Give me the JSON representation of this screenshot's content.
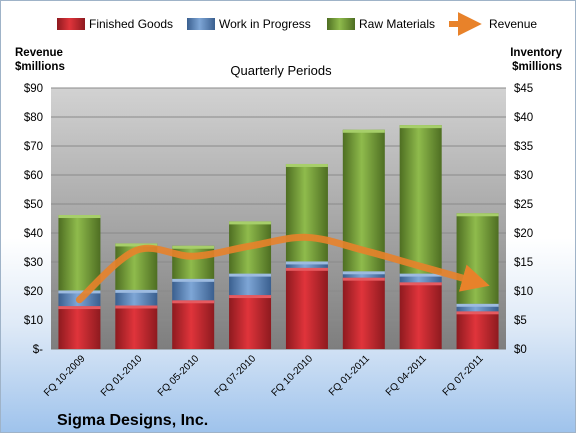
{
  "chart_data": {
    "type": "bar",
    "title": "Quarterly Periods",
    "company": "Sigma Designs, Inc.",
    "categories": [
      "FQ 10-2009",
      "FQ 01-2010",
      "FQ 05-2010",
      "FQ 07-2010",
      "FQ 10-2010",
      "FQ 01-2011",
      "FQ 04-2011",
      "FQ 07-2011"
    ],
    "stacked": true,
    "series": [
      {
        "name": "Finished Goods",
        "axis": "right",
        "color": "#c0272d",
        "values": [
          7.4,
          7.5,
          8.4,
          9.3,
          14.0,
          12.3,
          11.5,
          6.5
        ]
      },
      {
        "name": "Work in Progress",
        "axis": "right",
        "color": "#4f81bd",
        "values": [
          2.7,
          2.7,
          3.7,
          3.7,
          1.1,
          1.1,
          1.5,
          1.3
        ]
      },
      {
        "name": "Raw Materials",
        "axis": "right",
        "color": "#77a03a",
        "values": [
          13.0,
          8.0,
          5.7,
          9.0,
          16.8,
          24.4,
          25.6,
          15.6
        ]
      }
    ],
    "line_series": {
      "name": "Revenue",
      "axis": "left",
      "color": "#e8822a",
      "values": [
        17,
        34,
        32,
        35.5,
        38.5,
        34,
        28.5,
        23
      ]
    },
    "left_axis": {
      "label_line1": "Revenue",
      "label_line2": "$millions",
      "ylim": [
        0,
        90
      ],
      "ticks": [
        "$-",
        "$10",
        "$20",
        "$30",
        "$40",
        "$50",
        "$60",
        "$70",
        "$80",
        "$90"
      ]
    },
    "right_axis": {
      "label_line1": "Inventory",
      "label_line2": "$millions",
      "ylim": [
        0,
        45
      ],
      "ticks": [
        "$0",
        "$5",
        "$10",
        "$15",
        "$20",
        "$25",
        "$30",
        "$35",
        "$40",
        "$45"
      ]
    },
    "grid": true,
    "legend_position": "top"
  }
}
